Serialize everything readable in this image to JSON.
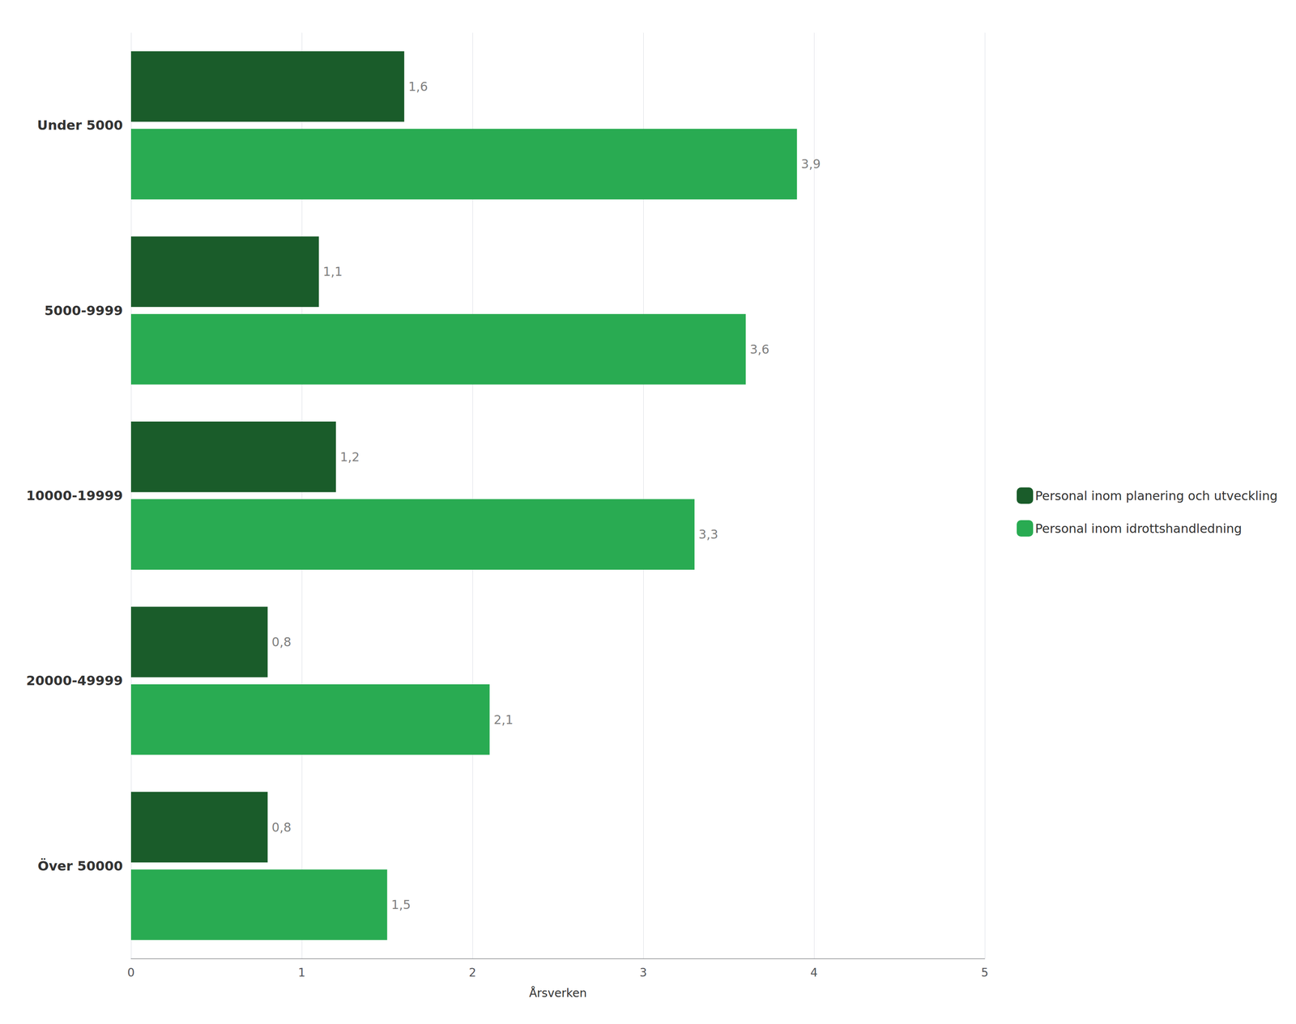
{
  "chart_data": {
    "type": "bar",
    "orientation": "horizontal",
    "categories": [
      "Under 5000",
      "5000-9999",
      "10000-19999",
      "20000-49999",
      "Över 50000"
    ],
    "series": [
      {
        "name": "Personal inom planering och utveckling",
        "color": "#1a5c2a",
        "values": [
          1.6,
          1.1,
          1.2,
          0.8,
          0.8
        ],
        "value_labels": [
          "1,6",
          "1,1",
          "1,2",
          "0,8",
          "0,8"
        ]
      },
      {
        "name": "Personal inom idrottshandledning",
        "color": "#29ab52",
        "values": [
          3.9,
          3.6,
          3.3,
          2.1,
          1.5
        ],
        "value_labels": [
          "3,9",
          "3,6",
          "3,3",
          "2,1",
          "1,5"
        ]
      }
    ],
    "xlabel": "Årsverken",
    "xlim": [
      0,
      5
    ],
    "xticks": [
      0,
      1,
      2,
      3,
      4,
      5
    ],
    "grid": true,
    "legend": "right",
    "data_labels": true
  }
}
